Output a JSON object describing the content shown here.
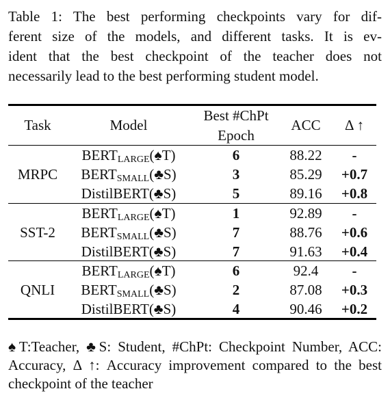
{
  "caption": {
    "lines": [
      "Table 1: The best performing checkpoints vary for dif-",
      "ferent size of the models, and different tasks. It is ev-",
      "ident that the best checkpoint of the teacher does not",
      "necessarily lead to the best performing student model."
    ]
  },
  "table": {
    "header": {
      "task": "Task",
      "model": "Model",
      "epoch": [
        "Best #ChPt",
        "Epoch"
      ],
      "acc": "ACC",
      "delta": "Δ ↑"
    },
    "groups": [
      {
        "task": "MRPC",
        "rows": [
          {
            "model": {
              "base": "BERT",
              "sub": "LARGE",
              "suffix": "(♠T)"
            },
            "epoch": "6",
            "acc": "88.22",
            "delta": "-"
          },
          {
            "model": {
              "base": "BERT",
              "sub": "SMALL",
              "suffix": "(♣S)"
            },
            "epoch": "3",
            "acc": "85.29",
            "delta": "+0.7"
          },
          {
            "model": {
              "base": "DistilBERT(♣S)"
            },
            "epoch": "5",
            "acc": "89.16",
            "delta": "+0.8"
          }
        ]
      },
      {
        "task": "SST-2",
        "rows": [
          {
            "model": {
              "base": "BERT",
              "sub": "LARGE",
              "suffix": "(♠T)"
            },
            "epoch": "1",
            "acc": "92.89",
            "delta": "-"
          },
          {
            "model": {
              "base": "BERT",
              "sub": "SMALL",
              "suffix": "(♣S)"
            },
            "epoch": "7",
            "acc": "88.76",
            "delta": "+0.6"
          },
          {
            "model": {
              "base": "DistilBERT(♣S)"
            },
            "epoch": "7",
            "acc": "91.63",
            "delta": "+0.4"
          }
        ]
      },
      {
        "task": "QNLI",
        "rows": [
          {
            "model": {
              "base": "BERT",
              "sub": "LARGE",
              "suffix": "(♠T)"
            },
            "epoch": "6",
            "acc": "92.4",
            "delta": "-"
          },
          {
            "model": {
              "base": "BERT",
              "sub": "SMALL",
              "suffix": "(♣S)"
            },
            "epoch": "2",
            "acc": "87.08",
            "delta": "+0.3"
          },
          {
            "model": {
              "base": "DistilBERT(♣S)"
            },
            "epoch": "4",
            "acc": "90.46",
            "delta": "+0.2"
          }
        ]
      }
    ]
  },
  "footnote": {
    "lines": [
      "♠T:Teacher, ♣S: Student, #ChPt: Checkpoint Number, ACC:",
      "Accuracy, Δ ↑: Accuracy improvement compared to the best",
      "checkpoint of the teacher"
    ]
  }
}
